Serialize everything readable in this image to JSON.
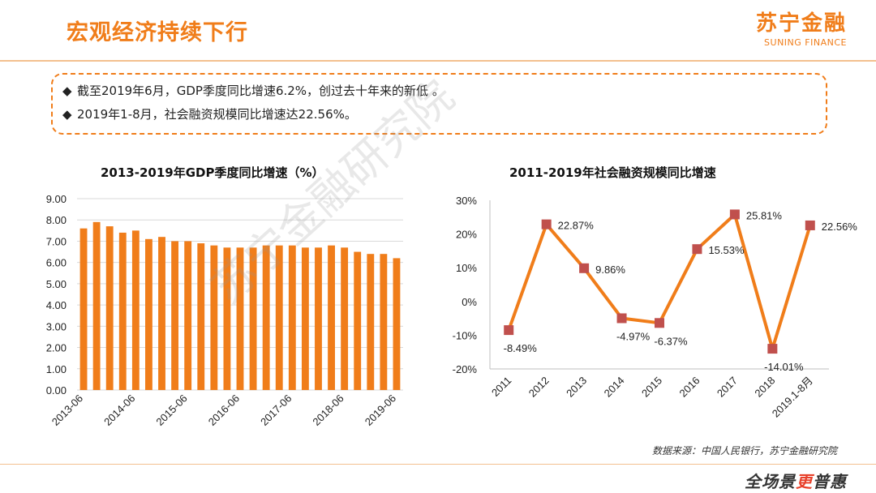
{
  "header": {
    "title": "宏观经济持续下行",
    "logo_cn": "苏宁金融",
    "logo_en": "SUNING FINANCE"
  },
  "callout": {
    "bullet_mark": "◆",
    "bullets": [
      "截至2019年6月，GDP季度同比增速6.2%，创过去十年来的新低 。",
      "2019年1-8月，社会融资规模同比增速达22.56%。"
    ]
  },
  "watermark": "苏宁金融研究院",
  "source": "数据来源：中国人民银行，苏宁金融研究院",
  "footer": {
    "slogan_prefix": "全场景",
    "slogan_accent": "更",
    "slogan_suffix": "普惠"
  },
  "colors": {
    "accent": "#f07d1a",
    "marker": "#c0504d",
    "grid": "#d9d9d9"
  },
  "chart_data": [
    {
      "type": "bar",
      "title": "2013-2019年GDP季度同比增速（%）",
      "ylim": [
        0,
        9
      ],
      "ytick_labels": [
        "0.00",
        "1.00",
        "2.00",
        "3.00",
        "4.00",
        "5.00",
        "6.00",
        "7.00",
        "8.00",
        "9.00"
      ],
      "xtick_labels": [
        "2013-06",
        "2014-06",
        "2015-06",
        "2016-06",
        "2017-06",
        "2018-06",
        "2019-06"
      ],
      "categories": [
        "2013-06",
        "2013-09",
        "2013-12",
        "2014-03",
        "2014-06",
        "2014-09",
        "2014-12",
        "2015-03",
        "2015-06",
        "2015-09",
        "2015-12",
        "2016-03",
        "2016-06",
        "2016-09",
        "2016-12",
        "2017-03",
        "2017-06",
        "2017-09",
        "2017-12",
        "2018-03",
        "2018-06",
        "2018-09",
        "2018-12",
        "2019-03",
        "2019-06"
      ],
      "values": [
        7.6,
        7.9,
        7.7,
        7.4,
        7.5,
        7.1,
        7.2,
        7.0,
        7.0,
        6.9,
        6.8,
        6.7,
        6.7,
        6.7,
        6.8,
        6.8,
        6.8,
        6.7,
        6.7,
        6.8,
        6.7,
        6.5,
        6.4,
        6.4,
        6.2
      ],
      "grid": true
    },
    {
      "type": "line",
      "title": "2011-2019年社会融资规模同比增速",
      "ylim": [
        -20,
        30
      ],
      "ytick_labels": [
        "-20%",
        "-10%",
        "0%",
        "10%",
        "20%",
        "30%"
      ],
      "categories": [
        "2011",
        "2012",
        "2013",
        "2014",
        "2015",
        "2016",
        "2017",
        "2018",
        "2019.1-8月"
      ],
      "values": [
        -8.49,
        22.87,
        9.86,
        -4.97,
        -6.37,
        15.53,
        25.81,
        -14.01,
        22.56
      ],
      "data_labels": [
        "-8.49%",
        "22.87%",
        "9.86%",
        "-4.97%",
        "-6.37%",
        "15.53%",
        "25.81%",
        "-14.01%",
        "22.56%"
      ],
      "grid": false
    }
  ]
}
